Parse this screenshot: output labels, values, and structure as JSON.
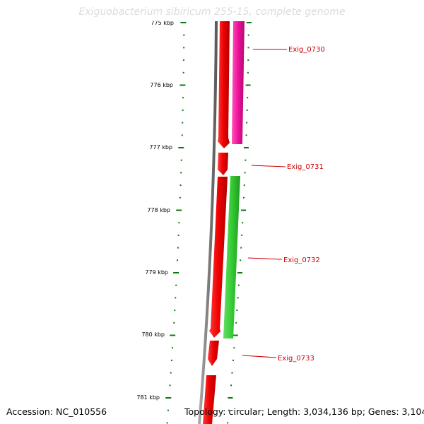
{
  "title": "Exiguobacterium sibiricum 255-15, complete genome",
  "accession": "Accession: NC_010556",
  "summary": "Topology: circular; Length: 3,034,136 bp; Genes: 3,104",
  "ticks": [
    "775 kbp",
    "776 kbp",
    "777 kbp",
    "778 kbp",
    "779 kbp",
    "780 kbp",
    "781 kbp"
  ],
  "genes": [
    {
      "id": "gene-exig-0730",
      "label": "Exig_0730"
    },
    {
      "id": "gene-exig-0731",
      "label": "Exig_0731"
    },
    {
      "id": "gene-exig-0732",
      "label": "Exig_0732"
    },
    {
      "id": "gene-exig-0733",
      "label": "Exig_0733"
    }
  ],
  "colors": {
    "cds": "#ee0000",
    "gene_magenta": "#ee1199",
    "gene_green": "#33cc33",
    "backbone": "#808080",
    "ticks": "#0a7a0a",
    "gene_label": "#cc0000"
  }
}
